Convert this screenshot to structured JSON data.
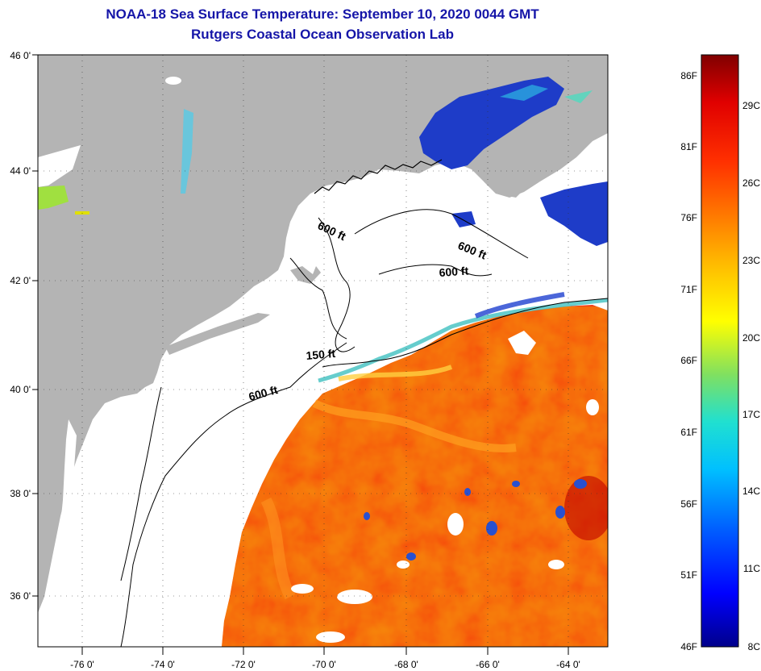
{
  "title": {
    "line1": "NOAA-18 Sea Surface Temperature:  September 10, 2020 0044 GMT",
    "line2": "Rutgers Coastal Ocean Observation Lab"
  },
  "map": {
    "lat_labels": [
      "46 0'",
      "44 0'",
      "42 0'",
      "40 0'",
      "38 0'",
      "36 0'"
    ],
    "lon_labels": [
      "-76 0'",
      "-74 0'",
      "-72 0'",
      "-70 0'",
      "-68 0'",
      "-66 0'",
      "-64 0'"
    ],
    "contour_labels": [
      "600 ft",
      "600 ft",
      "600 ft",
      "150 ft",
      "600 ft"
    ],
    "colors": {
      "land": "#b4b4b4",
      "cloud": "#ffffff",
      "warm_water": "#f03c14",
      "cool_water": "#1e3cc8"
    }
  },
  "colorbar": {
    "fahrenheit": [
      "86F",
      "81F",
      "76F",
      "71F",
      "66F",
      "61F",
      "56F",
      "51F",
      "46F"
    ],
    "celsius": [
      "29C",
      "26C",
      "23C",
      "20C",
      "17C",
      "14C",
      "11C",
      "8C"
    ],
    "stops": [
      "#00008b",
      "#0000ff",
      "#0080ff",
      "#00d8ff",
      "#40e0c0",
      "#a0e040",
      "#ffff00",
      "#ffc000",
      "#ff8000",
      "#ff3000",
      "#e00000",
      "#800000"
    ]
  }
}
